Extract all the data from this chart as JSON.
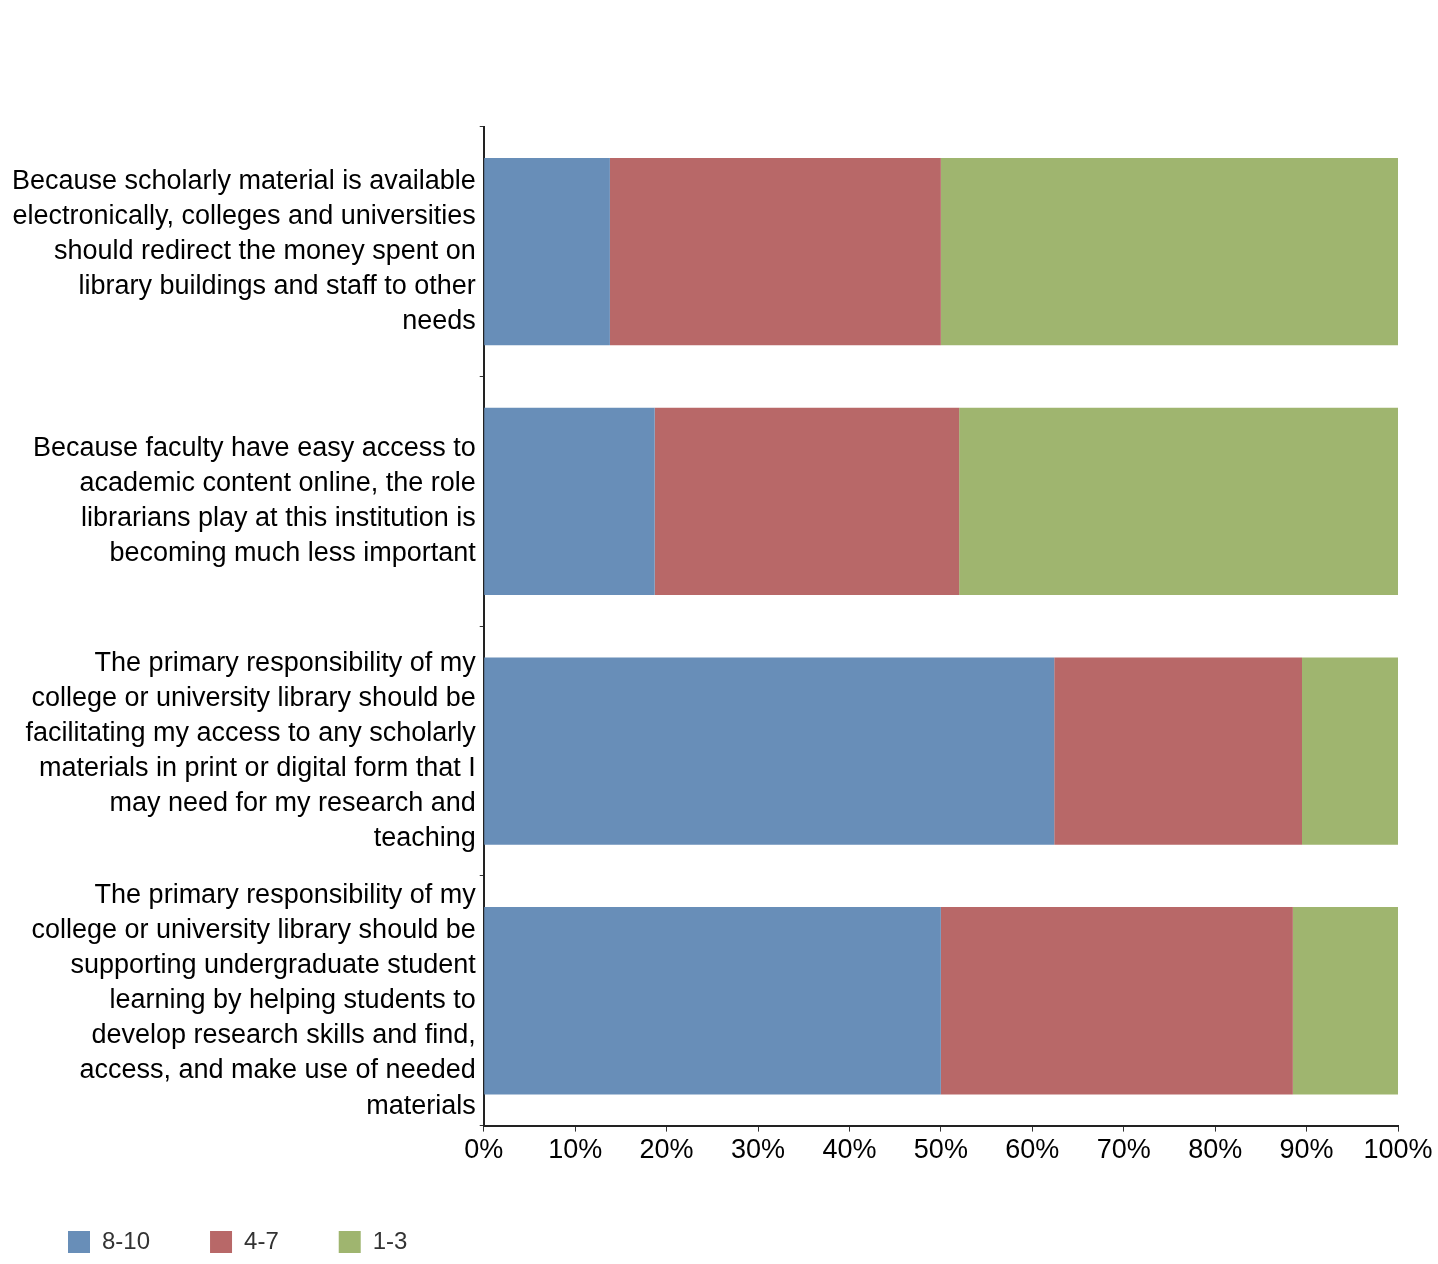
{
  "chart_data": {
    "type": "bar",
    "orientation": "horizontal",
    "stacked": true,
    "categories": [
      "Because scholarly material is available electronically, colleges and universities should redirect the money spent on library buildings and staff to other needs",
      "Because faculty have easy access to academic content online, the role librarians play at this institution is becoming much less important",
      "The primary responsibility of my college or university library should be facilitating my access to any scholarly materials in print or digital form that I may need for my research and teaching",
      "The primary responsibility of my college or university library should be supporting undergraduate student learning by helping students to develop research skills and find, access, and make use of needed materials"
    ],
    "series": [
      {
        "name": "8-10",
        "color": "#688eb8",
        "values": [
          13.8,
          18.7,
          62.4,
          50
        ]
      },
      {
        "name": "4-7",
        "color": "#b86868",
        "values": [
          36.2,
          33.3,
          27.1,
          38.5
        ]
      },
      {
        "name": "1-3",
        "color": "#9fb56f",
        "values": [
          50,
          48,
          10.5,
          11.5
        ]
      }
    ],
    "xlim": [
      0,
      100
    ],
    "xticks": [
      {
        "value": 0,
        "label": "0%"
      },
      {
        "value": 10,
        "label": "10%"
      },
      {
        "value": 20,
        "label": "20%"
      },
      {
        "value": 30,
        "label": "30%"
      },
      {
        "value": 40,
        "label": "40%"
      },
      {
        "value": 50,
        "label": "50%"
      },
      {
        "value": 60,
        "label": "60%"
      },
      {
        "value": 70,
        "label": "70%"
      },
      {
        "value": 80,
        "label": "80%"
      },
      {
        "value": 90,
        "label": "90%"
      },
      {
        "value": 100,
        "label": "100%"
      }
    ],
    "grid": false,
    "legend": "bottom left"
  }
}
